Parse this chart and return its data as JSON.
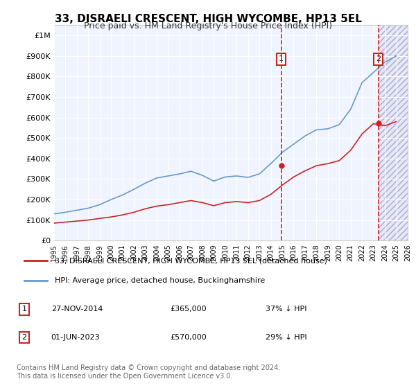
{
  "title": "33, DISRAELI CRESCENT, HIGH WYCOMBE, HP13 5EL",
  "subtitle": "Price paid vs. HM Land Registry's House Price Index (HPI)",
  "xlabel": "",
  "ylabel": "",
  "background_color": "#ffffff",
  "plot_bg_color": "#f0f4ff",
  "grid_color": "#ffffff",
  "hpi_color": "#6699cc",
  "price_color": "#cc2222",
  "marker1_date": 2014.91,
  "marker1_label": "1",
  "marker1_price": 365000,
  "marker2_date": 2023.42,
  "marker2_label": "2",
  "marker2_price": 570000,
  "annotation1": "27-NOV-2014    £365,000    37% ↓ HPI",
  "annotation2": "01-JUN-2023    £570,000    29% ↓ HPI",
  "footer": "Contains HM Land Registry data © Crown copyright and database right 2024.\nThis data is licensed under the Open Government Licence v3.0.",
  "legend1": "33, DISRAELI CRESCENT, HIGH WYCOMBE, HP13 5EL (detached house)",
  "legend2": "HPI: Average price, detached house, Buckinghamshire",
  "xmin": 1995,
  "xmax": 2026,
  "ymin": 0,
  "ymax": 1050000,
  "hpi_x": [
    1995,
    1996,
    1997,
    1998,
    1999,
    2000,
    2001,
    2002,
    2003,
    2004,
    2005,
    2006,
    2007,
    2008,
    2009,
    2010,
    2011,
    2012,
    2013,
    2014,
    2015,
    2016,
    2017,
    2018,
    2019,
    2020,
    2021,
    2022,
    2023,
    2024,
    2025
  ],
  "hpi_y": [
    130000,
    138000,
    148000,
    158000,
    175000,
    200000,
    222000,
    250000,
    280000,
    305000,
    315000,
    325000,
    338000,
    318000,
    290000,
    310000,
    315000,
    308000,
    325000,
    375000,
    430000,
    470000,
    510000,
    540000,
    545000,
    565000,
    640000,
    770000,
    820000,
    870000,
    900000
  ],
  "price_x": [
    1995,
    1996,
    1997,
    1998,
    1999,
    2000,
    2001,
    2002,
    2003,
    2004,
    2005,
    2006,
    2007,
    2008,
    2009,
    2010,
    2011,
    2012,
    2013,
    2014,
    2015,
    2016,
    2017,
    2018,
    2019,
    2020,
    2021,
    2022,
    2023,
    2024,
    2025
  ],
  "price_y": [
    85000,
    90000,
    95000,
    100000,
    108000,
    115000,
    125000,
    138000,
    155000,
    168000,
    175000,
    185000,
    195000,
    185000,
    170000,
    185000,
    190000,
    185000,
    195000,
    225000,
    270000,
    310000,
    340000,
    365000,
    375000,
    390000,
    440000,
    520000,
    570000,
    560000,
    580000
  ]
}
